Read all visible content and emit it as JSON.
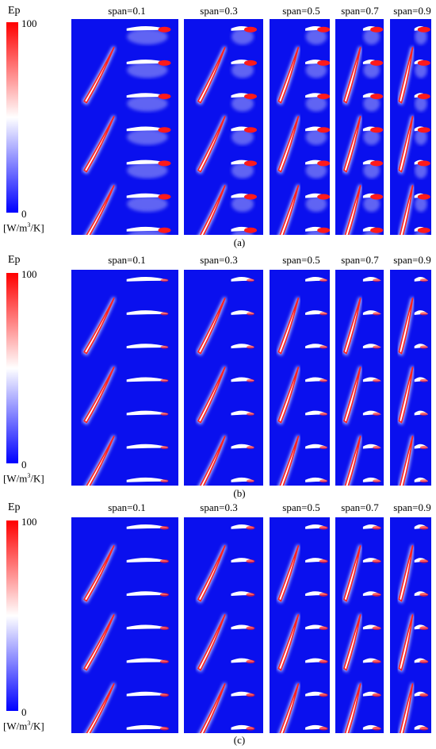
{
  "colorbar": {
    "title": "Ep",
    "max_label": "100",
    "min_label": "0",
    "unit_prefix": "[W/m",
    "unit_sup": "3",
    "unit_suffix": "/K]",
    "color_max": "#ff0000",
    "color_mid": "#ffffff",
    "color_min": "#0000ff",
    "range": [
      0,
      100
    ]
  },
  "span_labels": [
    "span=0.1",
    "span=0.3",
    "span=0.5",
    "span=0.7",
    "span=0.9"
  ],
  "panels": [
    {
      "label": "(a)",
      "wake_intensity": 1.0
    },
    {
      "label": "(b)",
      "wake_intensity": 0.25
    },
    {
      "label": "(c)",
      "wake_intensity": 0.4
    }
  ]
}
